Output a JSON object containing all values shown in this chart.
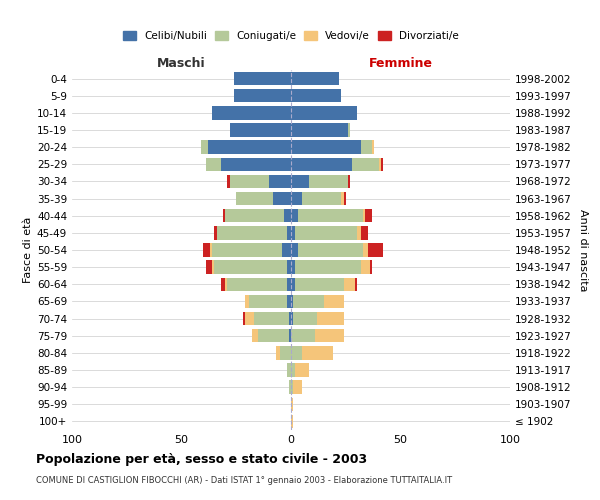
{
  "age_groups": [
    "100+",
    "95-99",
    "90-94",
    "85-89",
    "80-84",
    "75-79",
    "70-74",
    "65-69",
    "60-64",
    "55-59",
    "50-54",
    "45-49",
    "40-44",
    "35-39",
    "30-34",
    "25-29",
    "20-24",
    "15-19",
    "10-14",
    "5-9",
    "0-4"
  ],
  "birth_years": [
    "≤ 1902",
    "1903-1907",
    "1908-1912",
    "1913-1917",
    "1918-1922",
    "1923-1927",
    "1928-1932",
    "1933-1937",
    "1938-1942",
    "1943-1947",
    "1948-1952",
    "1953-1957",
    "1958-1962",
    "1963-1967",
    "1968-1972",
    "1973-1977",
    "1978-1982",
    "1983-1987",
    "1988-1992",
    "1993-1997",
    "1998-2002"
  ],
  "maschi": {
    "celibi": [
      0,
      0,
      0,
      0,
      0,
      1,
      1,
      2,
      2,
      2,
      4,
      2,
      3,
      8,
      10,
      32,
      38,
      28,
      36,
      26,
      26
    ],
    "coniugati": [
      0,
      0,
      1,
      2,
      5,
      14,
      16,
      17,
      27,
      33,
      32,
      32,
      27,
      17,
      18,
      7,
      3,
      0,
      0,
      0,
      0
    ],
    "vedovi": [
      0,
      0,
      0,
      0,
      2,
      3,
      4,
      2,
      1,
      1,
      1,
      0,
      0,
      0,
      0,
      0,
      0,
      0,
      0,
      0,
      0
    ],
    "divorziati": [
      0,
      0,
      0,
      0,
      0,
      0,
      1,
      0,
      2,
      3,
      3,
      1,
      1,
      0,
      1,
      0,
      0,
      0,
      0,
      0,
      0
    ]
  },
  "femmine": {
    "nubili": [
      0,
      0,
      0,
      0,
      0,
      0,
      1,
      1,
      2,
      2,
      3,
      2,
      3,
      5,
      8,
      28,
      32,
      26,
      30,
      23,
      22
    ],
    "coniugate": [
      0,
      0,
      1,
      2,
      5,
      11,
      11,
      14,
      22,
      30,
      30,
      28,
      30,
      18,
      18,
      12,
      5,
      1,
      0,
      0,
      0
    ],
    "vedove": [
      1,
      1,
      4,
      6,
      14,
      13,
      12,
      9,
      5,
      4,
      2,
      2,
      1,
      1,
      0,
      1,
      1,
      0,
      0,
      0,
      0
    ],
    "divorziate": [
      0,
      0,
      0,
      0,
      0,
      0,
      0,
      0,
      1,
      1,
      7,
      3,
      3,
      1,
      1,
      1,
      0,
      0,
      0,
      0,
      0
    ]
  },
  "colors": {
    "celibi_nubili": "#4472a8",
    "coniugati_e": "#b5c99a",
    "vedovi_e": "#f5c57a",
    "divorziati_e": "#cc2222"
  },
  "xlim": 100,
  "title": "Popolazione per età, sesso e stato civile - 2003",
  "subtitle": "COMUNE DI CASTIGLION FIBOCCHI (AR) - Dati ISTAT 1° gennaio 2003 - Elaborazione TUTTAITALIA.IT",
  "xlabel_left": "Maschi",
  "xlabel_right": "Femmine",
  "ylabel": "Fasce di età",
  "ylabel_right": "Anni di nascita",
  "background_color": "#ffffff",
  "grid_color": "#cccccc"
}
